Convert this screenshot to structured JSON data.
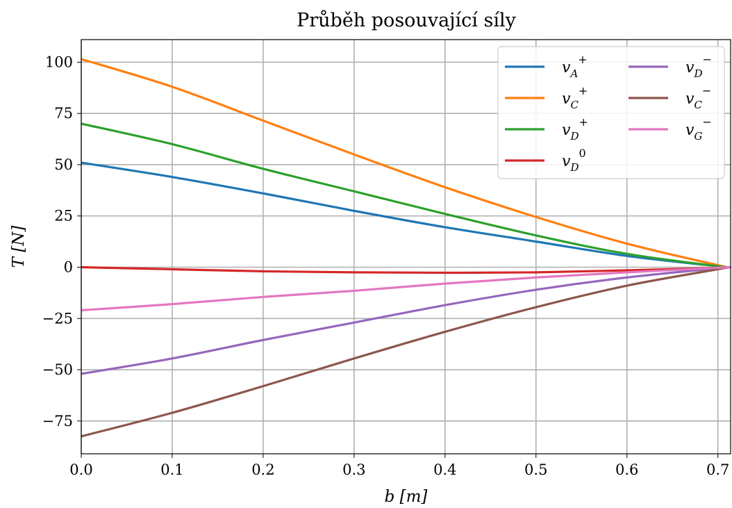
{
  "chart_data": {
    "type": "line",
    "title": "Průběh posouvající síly",
    "xlabel": "b [m]",
    "ylabel": "T [N]",
    "xlim": [
      0.0,
      0.714
    ],
    "ylim": [
      -91,
      111
    ],
    "xticks": [
      "0.0",
      "0.1",
      "0.2",
      "0.3",
      "0.4",
      "0.5",
      "0.6",
      "0.7"
    ],
    "xtick_values": [
      0.0,
      0.1,
      0.2,
      0.3,
      0.4,
      0.5,
      0.6,
      0.7
    ],
    "yticks": [
      "−75",
      "−50",
      "−25",
      "0",
      "25",
      "50",
      "75",
      "100"
    ],
    "ytick_values": [
      -75,
      -50,
      -25,
      0,
      25,
      50,
      75,
      100
    ],
    "grid": true,
    "legend_position": "top-right",
    "legend_columns": 2,
    "x": [
      0.0,
      0.1,
      0.2,
      0.3,
      0.4,
      0.5,
      0.6,
      0.7,
      0.714
    ],
    "series": [
      {
        "name": "v",
        "sub": "A",
        "sup": "+",
        "color": "#1f77b4",
        "values": [
          51,
          44,
          36,
          27.5,
          19.5,
          12.5,
          5.5,
          0.5,
          0
        ]
      },
      {
        "name": "v",
        "sub": "C",
        "sup": "+",
        "color": "#ff7f0e",
        "values": [
          101.5,
          88,
          71.5,
          55,
          39,
          24.5,
          11.5,
          1,
          0
        ]
      },
      {
        "name": "v",
        "sub": "D",
        "sup": "+",
        "color": "#2ca02c",
        "values": [
          70,
          60,
          48,
          37,
          26,
          15.5,
          6.5,
          0.5,
          0
        ]
      },
      {
        "name": "v",
        "sub": "D",
        "sup": "0",
        "color": "#d62728",
        "values": [
          0,
          -1,
          -2,
          -2.5,
          -2.7,
          -2.5,
          -1.5,
          -0.3,
          0
        ]
      },
      {
        "name": "v",
        "sub": "D",
        "sup": "−",
        "color": "#9467bd",
        "values": [
          -52,
          -44.5,
          -35.5,
          -27,
          -18.5,
          -11,
          -5,
          -0.5,
          0
        ]
      },
      {
        "name": "v",
        "sub": "C",
        "sup": "−",
        "color": "#8c564b",
        "values": [
          -82.5,
          -71,
          -58,
          -44.5,
          -31.5,
          -19.5,
          -9,
          -1,
          0
        ]
      },
      {
        "name": "v",
        "sub": "G",
        "sup": "−",
        "color": "#e377c2",
        "values": [
          -21,
          -18,
          -14.5,
          -11.5,
          -8,
          -5,
          -2.5,
          -0.3,
          0
        ]
      }
    ]
  }
}
